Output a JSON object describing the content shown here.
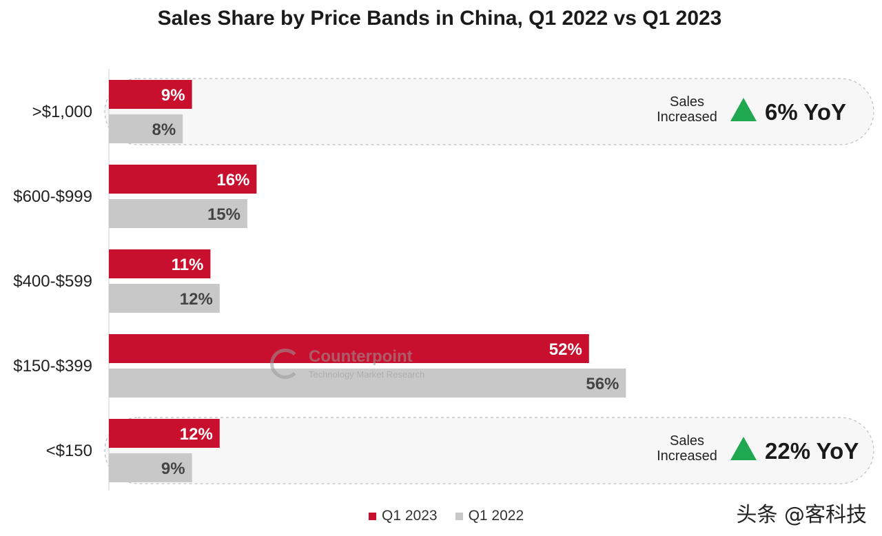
{
  "chart_data": {
    "type": "bar",
    "orientation": "horizontal",
    "title": "Sales Share by Price Bands in China, Q1 2022 vs Q1 2023",
    "categories": [
      ">$1,000",
      "$600-$999",
      "$400-$599",
      "$150-$399",
      "<$150"
    ],
    "series": [
      {
        "name": "Q1 2023",
        "color": "#c8102e",
        "values": [
          9,
          16,
          11,
          52,
          12
        ],
        "labels": [
          "9%",
          "16%",
          "11%",
          "52%",
          "12%"
        ]
      },
      {
        "name": "Q1 2022",
        "color": "#c8c8c8",
        "values": [
          8,
          15,
          12,
          56,
          9
        ],
        "labels": [
          "8%",
          "15%",
          "12%",
          "56%",
          "9%"
        ]
      }
    ],
    "value_unit": "%",
    "legend_position": "bottom-center",
    "grid": false,
    "annotations": [
      {
        "category": ">$1,000",
        "line1": "Sales",
        "line2": "Increased",
        "arrow": "up",
        "value": "6% YoY"
      },
      {
        "category": "<$150",
        "line1": "Sales",
        "line2": "Increased",
        "arrow": "up",
        "value": "22% YoY"
      }
    ]
  },
  "watermark": {
    "name": "Counterpoint",
    "tagline": "Technology Market Research"
  },
  "legend": [
    {
      "label": "Q1 2023",
      "color": "#c8102e"
    },
    {
      "label": "Q1 2022",
      "color": "#c8c8c8"
    }
  ],
  "source_mark": "头条 @客科技",
  "colors": {
    "accent_red": "#c8102e",
    "bar_gray": "#c8c8c8",
    "arrow_green": "#1fa84f"
  },
  "icons": {
    "annotation_arrow": "green-up-triangle-icon",
    "watermark_logo": "counterpoint-logo-icon"
  }
}
